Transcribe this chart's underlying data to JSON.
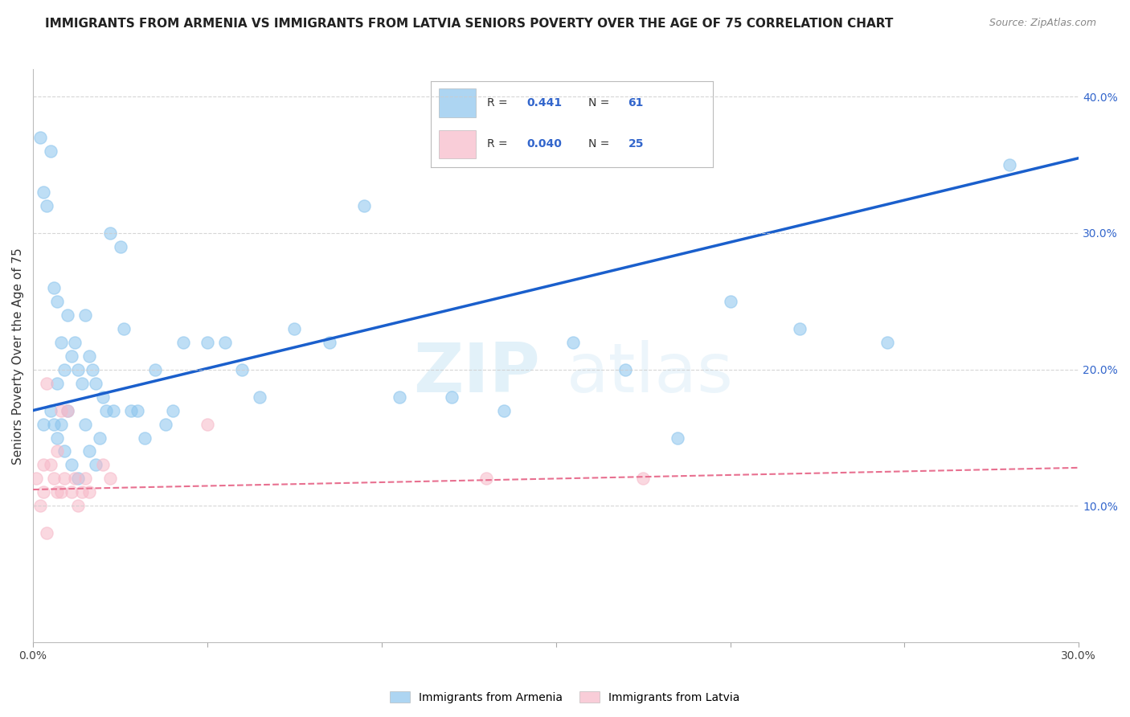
{
  "title": "IMMIGRANTS FROM ARMENIA VS IMMIGRANTS FROM LATVIA SENIORS POVERTY OVER THE AGE OF 75 CORRELATION CHART",
  "source": "Source: ZipAtlas.com",
  "ylabel": "Seniors Poverty Over the Age of 75",
  "xlim": [
    0.0,
    0.3
  ],
  "ylim": [
    0.0,
    0.42
  ],
  "xticks": [
    0.0,
    0.05,
    0.1,
    0.15,
    0.2,
    0.25,
    0.3
  ],
  "yticks_right": [
    0.1,
    0.2,
    0.3,
    0.4
  ],
  "ytick_labels_right": [
    "10.0%",
    "20.0%",
    "30.0%",
    "40.0%"
  ],
  "armenia_color": "#8ac4ed",
  "latvia_color": "#f7b8c8",
  "armenia_R": "0.441",
  "armenia_N": "61",
  "latvia_R": "0.040",
  "latvia_N": "25",
  "legend_label_armenia": "Immigrants from Armenia",
  "legend_label_latvia": "Immigrants from Latvia",
  "watermark_zip": "ZIP",
  "watermark_atlas": "atlas",
  "armenia_line_x": [
    0.0,
    0.3
  ],
  "armenia_line_y": [
    0.17,
    0.355
  ],
  "latvia_line_x": [
    0.0,
    0.3
  ],
  "latvia_line_y": [
    0.112,
    0.128
  ],
  "grid_color": "#cccccc",
  "background_color": "#ffffff",
  "title_fontsize": 11,
  "axis_label_fontsize": 11,
  "tick_fontsize": 10,
  "scatter_size": 120,
  "armenia_scatter_x": [
    0.002,
    0.003,
    0.003,
    0.004,
    0.005,
    0.005,
    0.006,
    0.006,
    0.007,
    0.007,
    0.007,
    0.008,
    0.008,
    0.009,
    0.009,
    0.01,
    0.01,
    0.011,
    0.011,
    0.012,
    0.013,
    0.013,
    0.014,
    0.015,
    0.015,
    0.016,
    0.016,
    0.017,
    0.018,
    0.018,
    0.019,
    0.02,
    0.021,
    0.022,
    0.023,
    0.025,
    0.026,
    0.028,
    0.03,
    0.032,
    0.035,
    0.038,
    0.04,
    0.043,
    0.05,
    0.055,
    0.06,
    0.065,
    0.075,
    0.085,
    0.095,
    0.105,
    0.12,
    0.135,
    0.155,
    0.17,
    0.185,
    0.2,
    0.22,
    0.245,
    0.28
  ],
  "armenia_scatter_y": [
    0.37,
    0.33,
    0.16,
    0.32,
    0.36,
    0.17,
    0.26,
    0.16,
    0.25,
    0.19,
    0.15,
    0.22,
    0.16,
    0.2,
    0.14,
    0.24,
    0.17,
    0.21,
    0.13,
    0.22,
    0.2,
    0.12,
    0.19,
    0.24,
    0.16,
    0.21,
    0.14,
    0.2,
    0.19,
    0.13,
    0.15,
    0.18,
    0.17,
    0.3,
    0.17,
    0.29,
    0.23,
    0.17,
    0.17,
    0.15,
    0.2,
    0.16,
    0.17,
    0.22,
    0.22,
    0.22,
    0.2,
    0.18,
    0.23,
    0.22,
    0.32,
    0.18,
    0.18,
    0.17,
    0.22,
    0.2,
    0.15,
    0.25,
    0.23,
    0.22,
    0.35
  ],
  "latvia_scatter_x": [
    0.001,
    0.002,
    0.003,
    0.003,
    0.004,
    0.004,
    0.005,
    0.006,
    0.007,
    0.007,
    0.008,
    0.008,
    0.009,
    0.01,
    0.011,
    0.012,
    0.013,
    0.014,
    0.015,
    0.016,
    0.02,
    0.022,
    0.05,
    0.13,
    0.175
  ],
  "latvia_scatter_y": [
    0.12,
    0.1,
    0.13,
    0.11,
    0.19,
    0.08,
    0.13,
    0.12,
    0.14,
    0.11,
    0.17,
    0.11,
    0.12,
    0.17,
    0.11,
    0.12,
    0.1,
    0.11,
    0.12,
    0.11,
    0.13,
    0.12,
    0.16,
    0.12,
    0.12
  ]
}
